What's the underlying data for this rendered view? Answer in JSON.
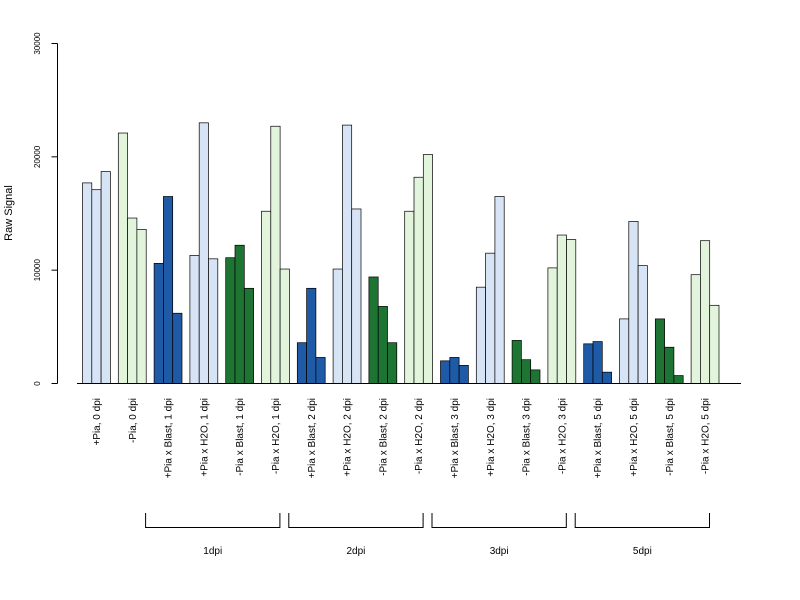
{
  "chart_data": {
    "type": "bar",
    "title": "",
    "xlabel": "",
    "ylabel": "Raw Signal",
    "ylim": [
      0,
      30000
    ],
    "yticks": [
      0,
      10000,
      20000,
      30000
    ],
    "grid": false,
    "legend": "none",
    "categories": [
      "+Pia, 0 dpi",
      "-Pia, 0 dpi",
      "+Pia x Blast, 1 dpi",
      "+Pia x H2O, 1 dpi",
      "-Pia x Blast, 1 dpi",
      "-Pia x H2O, 1 dpi",
      "+Pia x Blast, 2 dpi",
      "+Pia x H2O, 2 dpi",
      "-Pia x Blast, 2 dpi",
      "-Pia x H2O, 2 dpi",
      "+Pia x Blast, 3 dpi",
      "+Pia x H2O, 3 dpi",
      "-Pia x Blast, 3 dpi",
      "-Pia x H2O, 3 dpi",
      "+Pia x Blast, 5 dpi",
      "+Pia x H2O, 5 dpi",
      "-Pia x Blast, 5 dpi",
      "-Pia x H2O, 5 dpi"
    ],
    "replicates": [
      [
        17700,
        17100,
        18700
      ],
      [
        22100,
        14600,
        13600
      ],
      [
        10600,
        16500,
        6200
      ],
      [
        11300,
        23000,
        11000
      ],
      [
        11100,
        12200,
        8400
      ],
      [
        15200,
        22700,
        10100
      ],
      [
        3600,
        8400,
        2300
      ],
      [
        10100,
        22800,
        15400
      ],
      [
        9400,
        6800,
        3600
      ],
      [
        15200,
        18200,
        20200
      ],
      [
        2000,
        2300,
        1600
      ],
      [
        8500,
        11500,
        16500
      ],
      [
        3800,
        2100,
        1200
      ],
      [
        10200,
        13100,
        12700
      ],
      [
        3500,
        3700,
        1000
      ],
      [
        5700,
        14300,
        10400
      ],
      [
        5700,
        3200,
        700
      ],
      [
        9600,
        12600,
        6900
      ]
    ],
    "bar_colors": [
      "#d6e4f5",
      "#e2f5dc",
      "#1f5aa6",
      "#d6e4f5",
      "#1e7533",
      "#e2f5dc",
      "#1f5aa6",
      "#d6e4f5",
      "#1e7533",
      "#e2f5dc",
      "#1f5aa6",
      "#d6e4f5",
      "#1e7533",
      "#e2f5dc",
      "#1f5aa6",
      "#d6e4f5",
      "#1e7533",
      "#e2f5dc"
    ],
    "groups": [
      {
        "label": "1dpi",
        "from": 2,
        "to": 5
      },
      {
        "label": "2dpi",
        "from": 6,
        "to": 9
      },
      {
        "label": "3dpi",
        "from": 10,
        "to": 13
      },
      {
        "label": "5dpi",
        "from": 14,
        "to": 17
      }
    ]
  }
}
